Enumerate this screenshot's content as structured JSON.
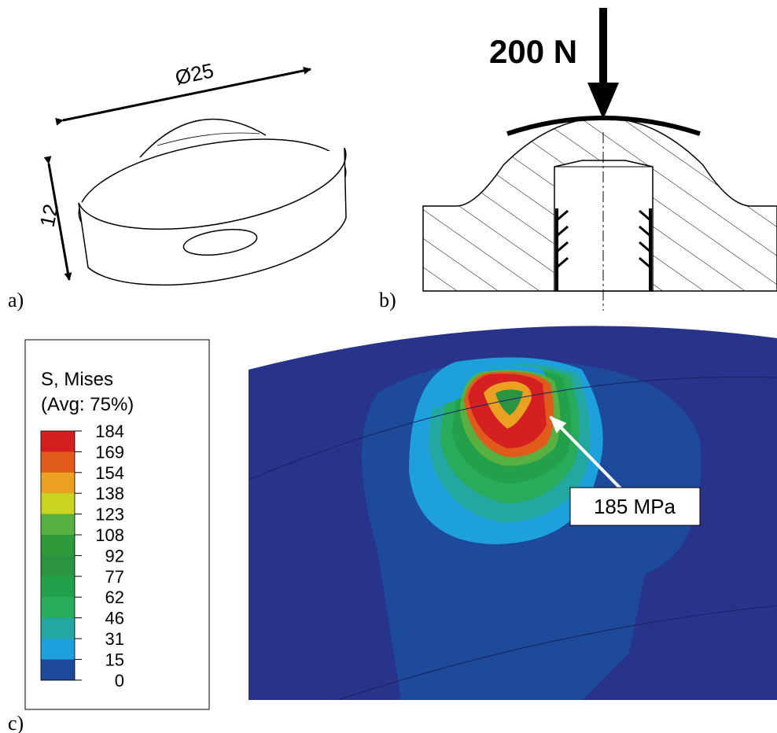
{
  "panel_a": {
    "diameter_label": "Ø25",
    "height_label": "12",
    "caption": "a)"
  },
  "panel_b": {
    "force_label": "200 N",
    "caption": "b)"
  },
  "panel_c": {
    "legend": {
      "title": "S, Mises",
      "subtitle": "(Avg: 75%)",
      "labels": [
        184,
        169,
        154,
        138,
        123,
        108,
        92,
        77,
        62,
        46,
        31,
        15,
        0
      ],
      "colors": [
        "#d42020",
        "#e05a1c",
        "#eaa020",
        "#c8d420",
        "#58b040",
        "#2e9a3a",
        "#2a9440",
        "#24a04a",
        "#28ac5c",
        "#22a8a0",
        "#1ea0dc",
        "#1e4a9c",
        "#28338a"
      ]
    },
    "annotation": "185 MPa",
    "caption": "c)"
  }
}
